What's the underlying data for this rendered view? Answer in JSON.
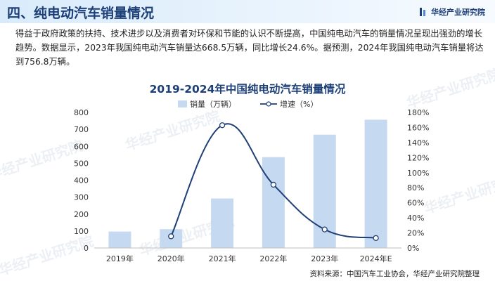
{
  "header": {
    "title": "四、纯电动汽车销量情况",
    "brand": "华经产业研究院"
  },
  "intro": "得益于政府政策的扶持、技术进步以及消费者对环保和节能的认识不断提高，中国纯电动汽车的销量情况呈现出强劲的增长趋势。数据显示，2023年我国纯电动汽车销量达668.5万辆，同比增长24.6%。据预测，2024年我国纯电动汽车销量将达到756.8万辆。",
  "watermark": "华经产业研究院",
  "source": "资料来源：中国汽车工业协会，华经产业研究院整理",
  "colors": {
    "bar": "#c5d9f1",
    "line": "#1f3f75",
    "title": "#1d3f78"
  },
  "chart_data": {
    "type": "bar",
    "title": "2019-2024年中国纯电动汽车销量情况",
    "categories": [
      "2019年",
      "2020年",
      "2021年",
      "2022年",
      "2023年",
      "2024年E"
    ],
    "series": [
      {
        "name": "销量（万辆）",
        "type": "bar",
        "axis": "left",
        "values": [
          97,
          111,
          292,
          536,
          668.5,
          756.8
        ]
      },
      {
        "name": "增速（%）",
        "type": "line",
        "axis": "right",
        "values": [
          null,
          15.5,
          163,
          84,
          24.6,
          13.2
        ]
      }
    ],
    "ylim_left": [
      0,
      800
    ],
    "yticks_left": [
      "0",
      "100",
      "200",
      "300",
      "400",
      "500",
      "600",
      "700",
      "800"
    ],
    "ylim_right": [
      0,
      180
    ],
    "yticks_right": [
      "0%",
      "20%",
      "40%",
      "60%",
      "80%",
      "100%",
      "120%",
      "140%",
      "160%",
      "180%"
    ],
    "legend_position": "top-center",
    "grid": false
  }
}
